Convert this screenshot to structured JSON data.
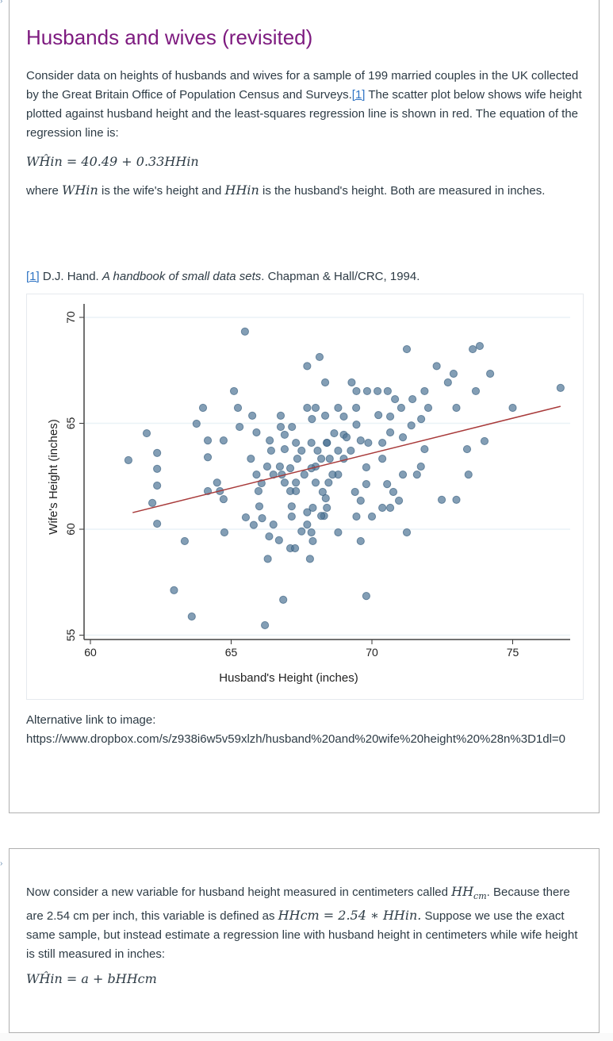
{
  "section1": {
    "title": "Husbands and wives (revisited)",
    "intro": "Consider data on heights of husbands and wives for a sample of 199 married couples in the UK collected by the Great Britain Office of Population Census and Surveys.",
    "footnote_ref": "[1]",
    "intro2": " The scatter plot below shows wife height plotted against husband height and the least-squares regression line is shown in red.  The equation of the regression line is:",
    "equation": "WĤin = 40.49 + 0.33HHin",
    "where_prefix": "where ",
    "where_var1": "WHin",
    "where_mid": " is the wife's height and ",
    "where_var2": "HHin",
    "where_suffix": " is the husband's height.  Both are measured in inches.",
    "citation_ref": "[1]",
    "citation_author": " D.J. Hand. ",
    "citation_title": "A handbook of small data sets",
    "citation_rest": ". Chapman & Hall/CRC, 1994.",
    "alt_label": "Alternative link to image:",
    "alt_url": "https://www.dropbox.com/s/z938i6w5v59xlzh/husband%20and%20wife%20height%20%28n%3D1dl=0"
  },
  "section2": {
    "t1": "Now consider a new variable for husband height measured in centimeters called ",
    "m1": "HH",
    "m1_sub": "cm",
    "t2": ". Because there are 2.54 cm per inch, this variable is defined as ",
    "m2": "HHcm = 2.54 ∗ HHin.",
    "t3": "  Suppose we use the exact same sample, but instead estimate a regression line  with husband height in centimeters while wife height is still measured in inches:",
    "equation": "WĤin = a + bHHcm"
  },
  "chart_data": {
    "type": "scatter",
    "xlabel": "Husband's Height (inches)",
    "ylabel": "Wife's Height (inches)",
    "xlim": [
      59.8,
      77
    ],
    "ylim": [
      54.5,
      70.5
    ],
    "xticks": [
      "60",
      "65",
      "70",
      "75"
    ],
    "yticks": [
      "55",
      "60",
      "65",
      "70"
    ],
    "grid": "horizontal",
    "colors": {
      "points": "#4f7596",
      "line": "#a83a3a",
      "grid": "#eaf2f7"
    },
    "regression": {
      "intercept": 40.49,
      "slope": 0.33,
      "x_range": [
        61.5,
        76.7
      ]
    },
    "points": [
      [
        65.49,
        69.33
      ],
      [
        61.35,
        63.26
      ],
      [
        62.0,
        64.53
      ],
      [
        62.37,
        63.6
      ],
      [
        62.37,
        62.85
      ],
      [
        62.37,
        62.06
      ],
      [
        62.2,
        61.24
      ],
      [
        62.37,
        60.26
      ],
      [
        63.35,
        59.44
      ],
      [
        62.97,
        57.12
      ],
      [
        63.6,
        55.88
      ],
      [
        66.2,
        55.47
      ],
      [
        64.0,
        65.73
      ],
      [
        63.77,
        64.98
      ],
      [
        64.17,
        64.19
      ],
      [
        64.17,
        63.4
      ],
      [
        64.73,
        64.19
      ],
      [
        65.1,
        66.52
      ],
      [
        65.24,
        65.73
      ],
      [
        65.3,
        64.83
      ],
      [
        64.17,
        61.8
      ],
      [
        64.6,
        61.8
      ],
      [
        64.5,
        62.2
      ],
      [
        64.73,
        61.42
      ],
      [
        64.76,
        59.85
      ],
      [
        65.52,
        60.56
      ],
      [
        65.75,
        65.36
      ],
      [
        65.9,
        64.57
      ],
      [
        66.76,
        65.36
      ],
      [
        65.7,
        63.33
      ],
      [
        65.9,
        62.58
      ],
      [
        66.37,
        64.19
      ],
      [
        66.76,
        64.83
      ],
      [
        67.16,
        64.83
      ],
      [
        66.9,
        64.46
      ],
      [
        66.42,
        63.71
      ],
      [
        66.28,
        62.96
      ],
      [
        66.08,
        62.17
      ],
      [
        65.97,
        61.8
      ],
      [
        66.0,
        61.08
      ],
      [
        66.1,
        60.52
      ],
      [
        66.5,
        60.22
      ],
      [
        66.35,
        59.66
      ],
      [
        67.1,
        59.1
      ],
      [
        67.27,
        59.1
      ],
      [
        66.85,
        56.67
      ],
      [
        67.7,
        67.7
      ],
      [
        68.14,
        68.13
      ],
      [
        68.34,
        66.93
      ],
      [
        67.7,
        65.73
      ],
      [
        68.0,
        65.73
      ],
      [
        67.87,
        65.2
      ],
      [
        68.34,
        65.36
      ],
      [
        68.8,
        65.73
      ],
      [
        69.28,
        66.93
      ],
      [
        69.45,
        66.52
      ],
      [
        69.44,
        65.73
      ],
      [
        69.0,
        65.32
      ],
      [
        69.45,
        64.94
      ],
      [
        69.83,
        66.52
      ],
      [
        70.2,
        66.52
      ],
      [
        70.56,
        66.52
      ],
      [
        70.82,
        66.14
      ],
      [
        71.04,
        65.73
      ],
      [
        70.65,
        65.32
      ],
      [
        70.23,
        65.39
      ],
      [
        70.65,
        64.57
      ],
      [
        71.1,
        64.34
      ],
      [
        71.44,
        66.14
      ],
      [
        71.24,
        68.5
      ],
      [
        71.87,
        66.52
      ],
      [
        72.0,
        65.73
      ],
      [
        71.75,
        65.2
      ],
      [
        71.4,
        64.9
      ],
      [
        72.3,
        67.7
      ],
      [
        72.7,
        66.93
      ],
      [
        72.9,
        67.34
      ],
      [
        73.0,
        65.73
      ],
      [
        73.58,
        68.5
      ],
      [
        73.83,
        68.65
      ],
      [
        73.69,
        66.52
      ],
      [
        74.2,
        67.34
      ],
      [
        74.0,
        64.16
      ],
      [
        75.0,
        65.73
      ],
      [
        76.7,
        66.67
      ],
      [
        73.38,
        63.78
      ],
      [
        73.43,
        62.58
      ],
      [
        72.48,
        61.39
      ],
      [
        73.0,
        61.39
      ],
      [
        71.87,
        63.78
      ],
      [
        71.74,
        62.96
      ],
      [
        71.6,
        62.58
      ],
      [
        71.1,
        62.58
      ],
      [
        71.24,
        59.85
      ],
      [
        70.96,
        61.35
      ],
      [
        70.76,
        61.76
      ],
      [
        70.54,
        62.13
      ],
      [
        70.37,
        61.01
      ],
      [
        70.65,
        61.01
      ],
      [
        70.0,
        60.6
      ],
      [
        69.8,
        56.85
      ],
      [
        69.45,
        60.6
      ],
      [
        69.6,
        61.35
      ],
      [
        69.4,
        61.76
      ],
      [
        69.8,
        62.13
      ],
      [
        69.8,
        62.92
      ],
      [
        70.37,
        63.33
      ],
      [
        69.87,
        64.08
      ],
      [
        70.37,
        64.08
      ],
      [
        69.25,
        63.71
      ],
      [
        69.0,
        64.46
      ],
      [
        69.1,
        64.34
      ],
      [
        69.6,
        64.19
      ],
      [
        68.8,
        63.71
      ],
      [
        69.0,
        63.33
      ],
      [
        68.8,
        62.58
      ],
      [
        68.6,
        62.58
      ],
      [
        68.46,
        62.2
      ],
      [
        68.36,
        61.46
      ],
      [
        68.3,
        60.63
      ],
      [
        68.8,
        59.85
      ],
      [
        69.6,
        59.44
      ],
      [
        67.85,
        59.85
      ],
      [
        67.9,
        59.44
      ],
      [
        67.8,
        58.6
      ],
      [
        67.7,
        60.22
      ],
      [
        67.5,
        59.9
      ],
      [
        67.15,
        60.6
      ],
      [
        67.15,
        61.08
      ],
      [
        67.1,
        61.8
      ],
      [
        66.9,
        62.2
      ],
      [
        66.8,
        62.58
      ],
      [
        67.1,
        62.88
      ],
      [
        67.35,
        63.33
      ],
      [
        67.5,
        63.71
      ],
      [
        67.85,
        64.08
      ],
      [
        68.07,
        63.71
      ],
      [
        68.4,
        64.08
      ],
      [
        68.2,
        63.33
      ],
      [
        68.0,
        62.96
      ],
      [
        67.6,
        62.58
      ],
      [
        67.3,
        62.2
      ],
      [
        67.3,
        61.8
      ],
      [
        68.0,
        62.2
      ],
      [
        68.25,
        61.76
      ],
      [
        67.9,
        61.01
      ],
      [
        68.4,
        61.01
      ],
      [
        67.85,
        62.88
      ],
      [
        66.73,
        62.96
      ],
      [
        66.5,
        62.58
      ],
      [
        67.3,
        64.08
      ],
      [
        66.9,
        63.78
      ],
      [
        65.8,
        60.2
      ],
      [
        66.7,
        59.48
      ],
      [
        66.3,
        58.6
      ],
      [
        67.7,
        60.8
      ],
      [
        68.2,
        60.63
      ],
      [
        68.5,
        63.33
      ],
      [
        68.66,
        64.53
      ],
      [
        68.4,
        64.08
      ]
    ]
  }
}
